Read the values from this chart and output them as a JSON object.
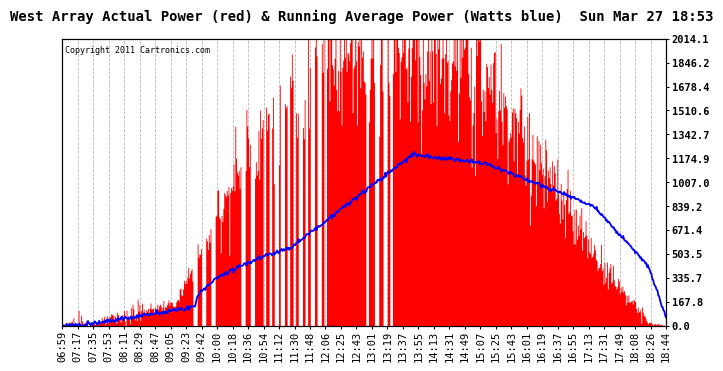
{
  "title": "West Array Actual Power (red) & Running Average Power (Watts blue)  Sun Mar 27 18:53",
  "copyright": "Copyright 2011 Cartronics.com",
  "ylabel_right": [
    "2014.1",
    "1846.2",
    "1678.4",
    "1510.6",
    "1342.7",
    "1174.9",
    "1007.0",
    "839.2",
    "671.4",
    "503.5",
    "335.7",
    "167.8",
    "0.0"
  ],
  "ymax": 2014.1,
  "ymin": 0.0,
  "background_color": "#ffffff",
  "plot_bg_color": "#ffffff",
  "grid_color": "#aaaaaa",
  "bar_color": "#ff0000",
  "line_color": "#0000ff",
  "title_fontsize": 10,
  "tick_fontsize": 7.5,
  "x_tick_labels": [
    "06:59",
    "07:17",
    "07:35",
    "07:53",
    "08:11",
    "08:29",
    "08:47",
    "09:05",
    "09:23",
    "09:42",
    "10:00",
    "10:18",
    "10:36",
    "10:54",
    "11:12",
    "11:30",
    "11:48",
    "12:06",
    "12:25",
    "12:43",
    "13:01",
    "13:19",
    "13:37",
    "13:55",
    "14:13",
    "14:31",
    "14:49",
    "15:07",
    "15:25",
    "15:43",
    "16:01",
    "16:19",
    "16:37",
    "16:55",
    "17:13",
    "17:31",
    "17:49",
    "18:08",
    "18:26",
    "18:44"
  ]
}
